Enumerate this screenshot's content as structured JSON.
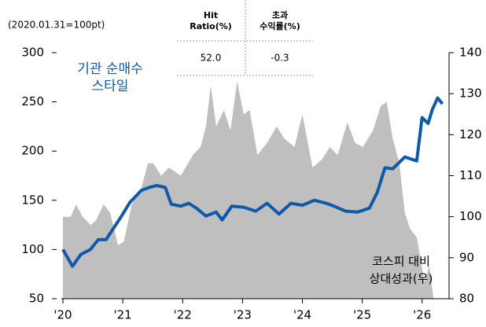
{
  "chart_data": {
    "type": "line",
    "subtitle": "(2020.01.31=100pt)",
    "table": {
      "headers": [
        [
          "Hit",
          "Ratio(%)"
        ],
        [
          "초과",
          "수익률(%)"
        ]
      ],
      "values": [
        "52.0",
        "-0.3"
      ]
    },
    "xlim": [
      2020,
      2026.45
    ],
    "xticks": [
      {
        "value": 2020,
        "label": "'20"
      },
      {
        "value": 2021,
        "label": "'21"
      },
      {
        "value": 2022,
        "label": "'22"
      },
      {
        "value": 2023,
        "label": "'23"
      },
      {
        "value": 2024,
        "label": "'24"
      },
      {
        "value": 2025,
        "label": "'25"
      },
      {
        "value": 2026,
        "label": "'26"
      }
    ],
    "ylim": [
      50,
      300
    ],
    "yticks": [
      50,
      100,
      150,
      200,
      250,
      300
    ],
    "y2lim": [
      80,
      140
    ],
    "y2ticks": [
      80,
      90,
      100,
      110,
      120,
      130,
      140
    ],
    "series": [
      {
        "label": [
          "코스피 대비",
          "상대성과(우)"
        ],
        "color": "#bfbfbf",
        "axis": "y2",
        "kind": "area",
        "x": [
          2020.0,
          2020.13,
          2020.22,
          2020.33,
          2020.46,
          2020.55,
          2020.68,
          2020.79,
          2020.92,
          2021.02,
          2021.15,
          2021.31,
          2021.42,
          2021.51,
          2021.64,
          2021.77,
          2021.97,
          2022.17,
          2022.3,
          2022.39,
          2022.47,
          2022.56,
          2022.69,
          2022.8,
          2022.91,
          2023.02,
          2023.12,
          2023.25,
          2023.41,
          2023.57,
          2023.7,
          2023.87,
          2024.0,
          2024.17,
          2024.33,
          2024.46,
          2024.59,
          2024.75,
          2024.88,
          2025.01,
          2025.18,
          2025.31,
          2025.41,
          2025.51,
          2025.62,
          2025.71,
          2025.8,
          2025.91,
          2026.04,
          2026.12,
          2026.19
        ],
        "values": [
          100,
          100,
          103,
          100,
          98,
          99,
          103,
          101,
          93,
          94,
          103,
          107,
          113,
          113,
          110,
          112,
          110,
          115,
          117,
          122,
          132,
          122,
          126,
          121,
          133,
          125,
          126,
          115,
          118,
          122,
          119,
          117,
          125,
          112,
          114,
          117,
          115,
          123,
          118,
          117,
          121,
          127,
          128,
          119,
          113,
          101,
          97,
          95,
          84,
          88,
          80
        ]
      },
      {
        "label": [
          "기관 순매수",
          "스타일"
        ],
        "color": "#0f5aa8",
        "kind": "line",
        "x": [
          2020.0,
          2020.16,
          2020.3,
          2020.46,
          2020.59,
          2020.72,
          2020.85,
          2020.98,
          2021.12,
          2021.31,
          2021.44,
          2021.57,
          2021.71,
          2021.81,
          2021.97,
          2022.1,
          2022.23,
          2022.39,
          2022.56,
          2022.66,
          2022.82,
          2023.02,
          2023.22,
          2023.41,
          2023.61,
          2023.81,
          2024.0,
          2024.2,
          2024.4,
          2024.53,
          2024.72,
          2024.92,
          2025.12,
          2025.25,
          2025.38,
          2025.51,
          2025.71,
          2025.91,
          2026.0,
          2026.1,
          2026.17,
          2026.26,
          2026.34
        ],
        "values": [
          100,
          83,
          95,
          100,
          110,
          110,
          122,
          134,
          148,
          160,
          163,
          165,
          163,
          146,
          144,
          147,
          142,
          134,
          138,
          130,
          144,
          143,
          139,
          147,
          136,
          147,
          145,
          150,
          147,
          144,
          139,
          138,
          142,
          158,
          183,
          182,
          194,
          190,
          234,
          228,
          242,
          254,
          248
        ]
      }
    ]
  }
}
